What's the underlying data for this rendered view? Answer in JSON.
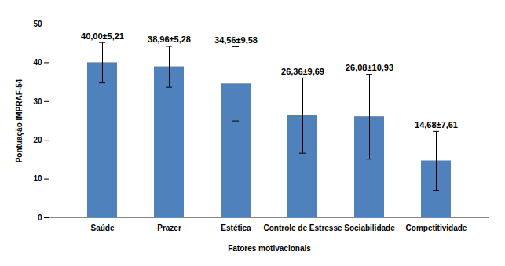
{
  "chart_data": {
    "type": "bar",
    "categories": [
      "Saúde",
      "Prazer",
      "Estética",
      "Controle de Estresse",
      "Sociabilidade",
      "Competitividade"
    ],
    "values": [
      40.0,
      38.96,
      34.56,
      26.36,
      26.08,
      14.68
    ],
    "errors": [
      5.21,
      5.28,
      9.58,
      9.69,
      10.93,
      7.61
    ],
    "value_labels": [
      "40,00±5,21",
      "38,96±5,28",
      "34,56±9,58",
      "26,36±9,69",
      "26,08±10,93",
      "14,68±7,61"
    ],
    "data_labels": true,
    "color": "#4f81bd",
    "x_label": "Fatores motivacionais",
    "y_label": "Pontuação IMPRAF-54",
    "ylim": [
      0,
      50
    ],
    "yticks": [
      0,
      10,
      20,
      30,
      40,
      50
    ],
    "grid": false
  }
}
